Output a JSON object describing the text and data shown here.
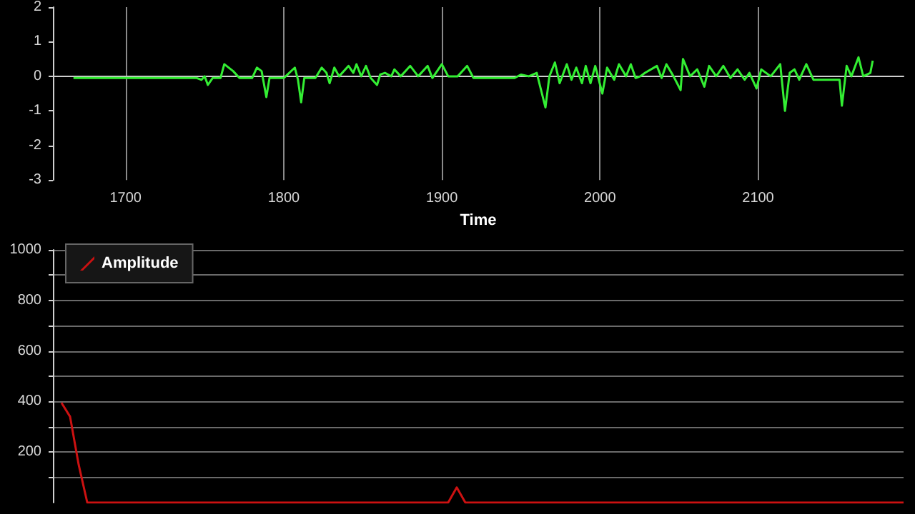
{
  "chart_data": [
    {
      "type": "line",
      "xlabel": "Time",
      "xlim": [
        1654,
        2192
      ],
      "xticks": [
        1700,
        1800,
        1900,
        2000,
        2100
      ],
      "ylim": [
        -3,
        2
      ],
      "yticks": [
        -3,
        -2,
        -1,
        0,
        1,
        2
      ],
      "grid": "x",
      "legend": false,
      "x": [
        1667,
        1672,
        1745,
        1748,
        1750,
        1752,
        1755,
        1760,
        1762.4,
        1768,
        1772,
        1780,
        1783,
        1786,
        1789,
        1791,
        1800,
        1807,
        1809,
        1811,
        1813,
        1820,
        1824,
        1827,
        1829,
        1832,
        1835,
        1841,
        1844,
        1846,
        1849,
        1852,
        1855,
        1859,
        1861,
        1864,
        1868,
        1870,
        1874,
        1880,
        1885,
        1891,
        1894,
        1900,
        1904,
        1910,
        1916,
        1920,
        1946,
        1950,
        1955,
        1960,
        1965.5,
        1968,
        1971.5,
        1974.5,
        1979,
        1982,
        1985,
        1988.6,
        1991,
        1994,
        1997,
        2001.5,
        2004.5,
        2009,
        2012,
        2016.5,
        2019.5,
        2022.5,
        2025.5,
        2028.5,
        2036,
        2039,
        2042,
        2046.5,
        2051,
        2052.5,
        2057,
        2061.5,
        2066,
        2069,
        2073.5,
        2078,
        2082.5,
        2087,
        2091.5,
        2094.5,
        2099,
        2102,
        2108,
        2114,
        2117,
        2120,
        2123,
        2126,
        2130.5,
        2135,
        2151.5,
        2153,
        2156,
        2159,
        2163.5,
        2166.5,
        2171,
        2172.5
      ],
      "series": [
        {
          "color": "#33ee33",
          "values": [
            -0.05,
            -0.05,
            -0.05,
            -0.1,
            0.0,
            -0.25,
            -0.05,
            -0.05,
            0.35,
            0.15,
            -0.05,
            -0.05,
            0.25,
            0.15,
            -0.6,
            -0.05,
            -0.05,
            0.25,
            -0.1,
            -0.75,
            -0.05,
            -0.05,
            0.25,
            0.1,
            -0.2,
            0.25,
            0.0,
            0.3,
            0.1,
            0.35,
            0.0,
            0.3,
            -0.05,
            -0.25,
            0.05,
            0.1,
            0.0,
            0.2,
            0.0,
            0.3,
            0.0,
            0.3,
            -0.05,
            0.35,
            0.0,
            0.0,
            0.3,
            -0.05,
            -0.05,
            0.05,
            0.0,
            0.1,
            -0.9,
            0.0,
            0.4,
            -0.2,
            0.35,
            -0.1,
            0.25,
            -0.2,
            0.3,
            -0.2,
            0.3,
            -0.5,
            0.25,
            -0.1,
            0.35,
            0.0,
            0.35,
            -0.05,
            0.0,
            0.1,
            0.3,
            -0.05,
            0.35,
            0.0,
            -0.4,
            0.5,
            0.0,
            0.2,
            -0.3,
            0.3,
            0.0,
            0.3,
            -0.05,
            0.2,
            -0.1,
            0.1,
            -0.35,
            0.2,
            0.0,
            0.35,
            -1.0,
            0.1,
            0.2,
            -0.1,
            0.35,
            -0.1,
            -0.1,
            -0.85,
            0.3,
            0.0,
            0.55,
            0.0,
            0.1,
            0.45
          ]
        }
      ]
    },
    {
      "type": "line",
      "categories": [
        null,
        null,
        null,
        null,
        null,
        null,
        null,
        null,
        null,
        null,
        null,
        null,
        null,
        null,
        null,
        null,
        null,
        null,
        null,
        null,
        null,
        null,
        null,
        null,
        null,
        null,
        null,
        null,
        null,
        null,
        null,
        null,
        null,
        null,
        null,
        null,
        null,
        null,
        null,
        null,
        null,
        null,
        null,
        null,
        null,
        null,
        null,
        null,
        null,
        null,
        null,
        null,
        null,
        null,
        null,
        null,
        null,
        null,
        null,
        null,
        null,
        null,
        null,
        null,
        null,
        null,
        null,
        null,
        null,
        null,
        null,
        null,
        null,
        null,
        null,
        null,
        null,
        null,
        null,
        null,
        null,
        null,
        null,
        null,
        null,
        null,
        null,
        null,
        null,
        null,
        null,
        null,
        null,
        null,
        null,
        null,
        null,
        null,
        null,
        null
      ],
      "ylim": [
        0,
        1000
      ],
      "yticks": [
        {
          "value": 100,
          "label": null
        },
        200,
        {
          "value": 300,
          "label": null
        },
        400,
        {
          "value": 500,
          "label": null
        },
        600,
        {
          "value": 700,
          "label": null
        },
        800,
        {
          "value": 900,
          "label": null
        },
        1000
      ],
      "grid": "y",
      "legend": "top left",
      "tick_labels": "y",
      "series": [
        {
          "name": "Amplitude",
          "color": "#cc1111",
          "values": [
            null,
            395,
            340,
            150,
            0,
            0,
            0,
            0,
            0,
            0,
            0,
            0,
            0,
            0,
            0,
            0,
            0,
            0,
            0,
            0,
            0,
            0,
            0,
            0,
            0,
            0,
            0,
            0,
            0,
            0,
            0,
            0,
            0,
            0,
            0,
            0,
            0,
            0,
            0,
            0,
            0,
            0,
            0,
            0,
            0,
            0,
            0,
            60,
            0,
            0,
            0,
            0,
            0,
            0,
            0,
            0,
            0,
            0,
            0,
            0,
            0,
            0,
            0,
            0,
            0,
            0,
            0,
            0,
            0,
            0,
            0,
            0,
            0,
            0,
            0,
            0,
            0,
            0,
            0,
            0,
            0,
            0,
            0,
            0,
            0,
            0,
            0,
            0,
            0,
            0,
            0,
            0,
            0,
            0,
            0,
            0,
            0,
            0,
            0,
            0
          ]
        }
      ]
    }
  ]
}
